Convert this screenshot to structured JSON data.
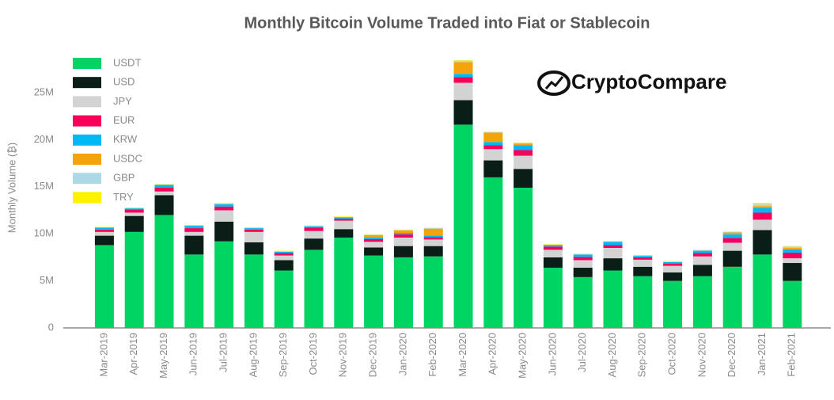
{
  "chart_data": {
    "type": "bar",
    "stacked": true,
    "title": "Monthly Bitcoin Volume Traded into Fiat or Stablecoin",
    "y_label": "Monthly Volume (₿)",
    "logo": "CryptoCompare",
    "categories": [
      "Mar-2019",
      "Apr-2019",
      "May-2019",
      "Jun-2019",
      "Jul-2019",
      "Aug-2019",
      "Sep-2019",
      "Oct-2019",
      "Nov-2019",
      "Dec-2019",
      "Jan-2020",
      "Feb-2020",
      "Mar-2020",
      "Apr-2020",
      "May-2020",
      "Jun-2020",
      "Jul-2020",
      "Aug-2020",
      "Sep-2020",
      "Oct-2020",
      "Nov-2020",
      "Dec-2020",
      "Jan-2021",
      "Feb-2021"
    ],
    "series": [
      {
        "name": "USDT",
        "color": "#00d563",
        "values": [
          8800000,
          10200000,
          12000000,
          7800000,
          9200000,
          7800000,
          6100000,
          8300000,
          9600000,
          7700000,
          7500000,
          7600000,
          21600000,
          16000000,
          14900000,
          6400000,
          5400000,
          6100000,
          5500000,
          5000000,
          5500000,
          6500000,
          7800000,
          5000000
        ]
      },
      {
        "name": "USD",
        "color": "#0a1d16",
        "values": [
          1000000,
          1700000,
          2100000,
          2000000,
          2100000,
          1300000,
          1100000,
          1200000,
          900000,
          850000,
          1200000,
          1100000,
          2600000,
          1800000,
          2000000,
          1100000,
          1000000,
          1300000,
          1000000,
          900000,
          1200000,
          1700000,
          2600000,
          1900000
        ]
      },
      {
        "name": "JPY",
        "color": "#d3d3d3",
        "values": [
          400000,
          350000,
          400000,
          400000,
          1200000,
          1100000,
          500000,
          800000,
          900000,
          600000,
          900000,
          700000,
          1850000,
          1200000,
          1400000,
          800000,
          800000,
          1100000,
          750000,
          700000,
          900000,
          850000,
          1100000,
          500000
        ]
      },
      {
        "name": "EUR",
        "color": "#f5005a",
        "values": [
          250000,
          350000,
          400000,
          400000,
          400000,
          250000,
          250000,
          350000,
          200000,
          300000,
          350000,
          250000,
          600000,
          400000,
          600000,
          350000,
          350000,
          300000,
          250000,
          250000,
          350000,
          500000,
          750000,
          600000
        ]
      },
      {
        "name": "KRW",
        "color": "#00b8f5",
        "values": [
          200000,
          100000,
          300000,
          250000,
          250000,
          150000,
          150000,
          150000,
          150000,
          150000,
          150000,
          150000,
          350000,
          350000,
          500000,
          150000,
          250000,
          350000,
          150000,
          150000,
          250000,
          400000,
          500000,
          350000
        ]
      },
      {
        "name": "USDC",
        "color": "#f5a30a",
        "values": [
          0,
          0,
          0,
          0,
          0,
          0,
          0,
          0,
          0,
          250000,
          250000,
          750000,
          1250000,
          1000000,
          200000,
          0,
          0,
          0,
          0,
          0,
          0,
          200000,
          200000,
          150000
        ]
      },
      {
        "name": "GBP",
        "color": "#add8e6",
        "values": [
          50000,
          50000,
          50000,
          50000,
          50000,
          50000,
          50000,
          50000,
          50000,
          50000,
          50000,
          50000,
          150000,
          50000,
          50000,
          50000,
          50000,
          50000,
          50000,
          50000,
          50000,
          50000,
          200000,
          150000
        ]
      },
      {
        "name": "TRY",
        "color": "#fff200",
        "values": [
          50000,
          50000,
          50000,
          50000,
          100000,
          50000,
          50000,
          50000,
          50000,
          50000,
          50000,
          50000,
          50000,
          50000,
          50000,
          50000,
          50000,
          50000,
          50000,
          50000,
          50000,
          50000,
          150000,
          50000
        ]
      }
    ],
    "ylim": [
      0,
      30000000
    ],
    "yticks": [
      0,
      {
        "value": 5000000,
        "label": "5M"
      },
      {
        "value": 10000000,
        "label": "10M"
      },
      {
        "value": 15000000,
        "label": "15M"
      },
      {
        "value": 20000000,
        "label": "20M"
      },
      {
        "value": 25000000,
        "label": "25M"
      }
    ],
    "grid": false,
    "legend": "upper left"
  }
}
